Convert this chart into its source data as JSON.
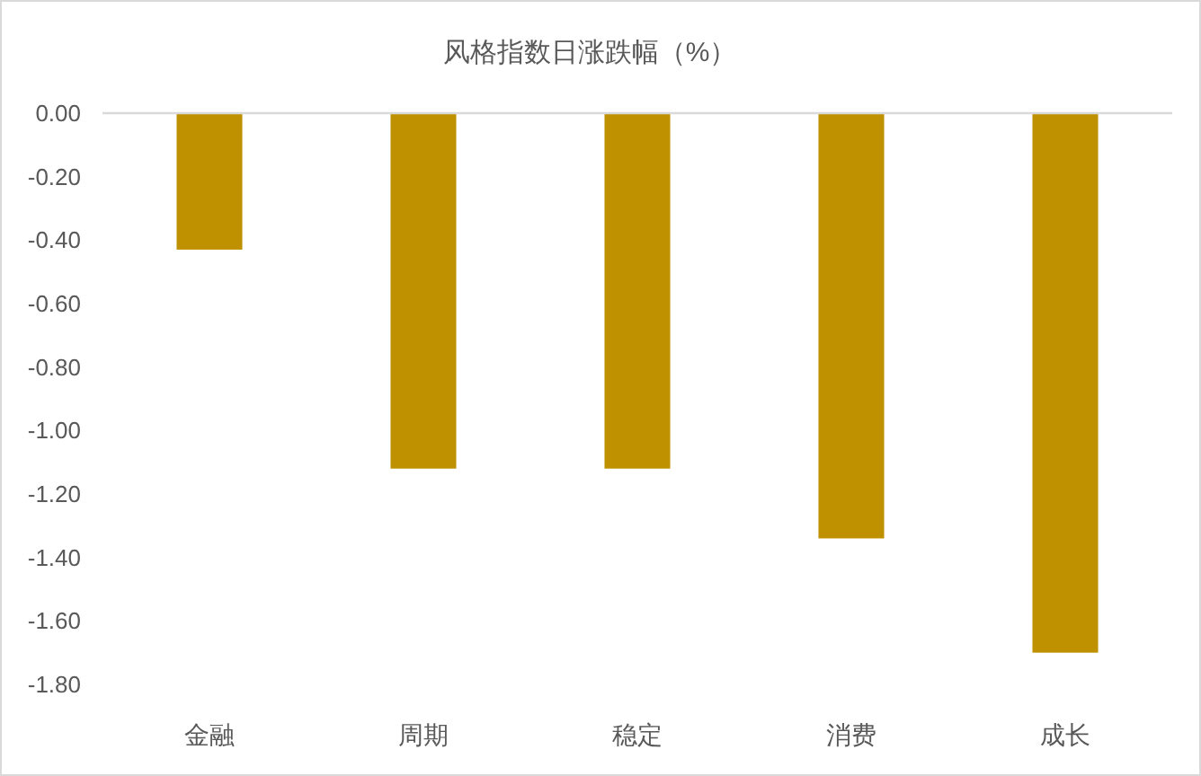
{
  "chart_data": {
    "type": "bar",
    "title": "风格指数日涨跌幅（%）",
    "categories": [
      "金融",
      "周期",
      "稳定",
      "消费",
      "成长"
    ],
    "values": [
      -0.43,
      -1.12,
      -1.12,
      -1.34,
      -1.7
    ],
    "color": "#bf9000",
    "ylim": [
      -1.8,
      0
    ],
    "yticks": [
      {
        "value": 0,
        "label": "0.00"
      },
      {
        "value": -0.2,
        "label": "-0.20"
      },
      {
        "value": -0.4,
        "label": "-0.40"
      },
      {
        "value": -0.6,
        "label": "-0.60"
      },
      {
        "value": -0.8,
        "label": "-0.80"
      },
      {
        "value": -1.0,
        "label": "-1.00"
      },
      {
        "value": -1.2,
        "label": "-1.20"
      },
      {
        "value": -1.4,
        "label": "-1.40"
      },
      {
        "value": -1.6,
        "label": "-1.60"
      },
      {
        "value": -1.8,
        "label": "-1.80"
      }
    ]
  }
}
